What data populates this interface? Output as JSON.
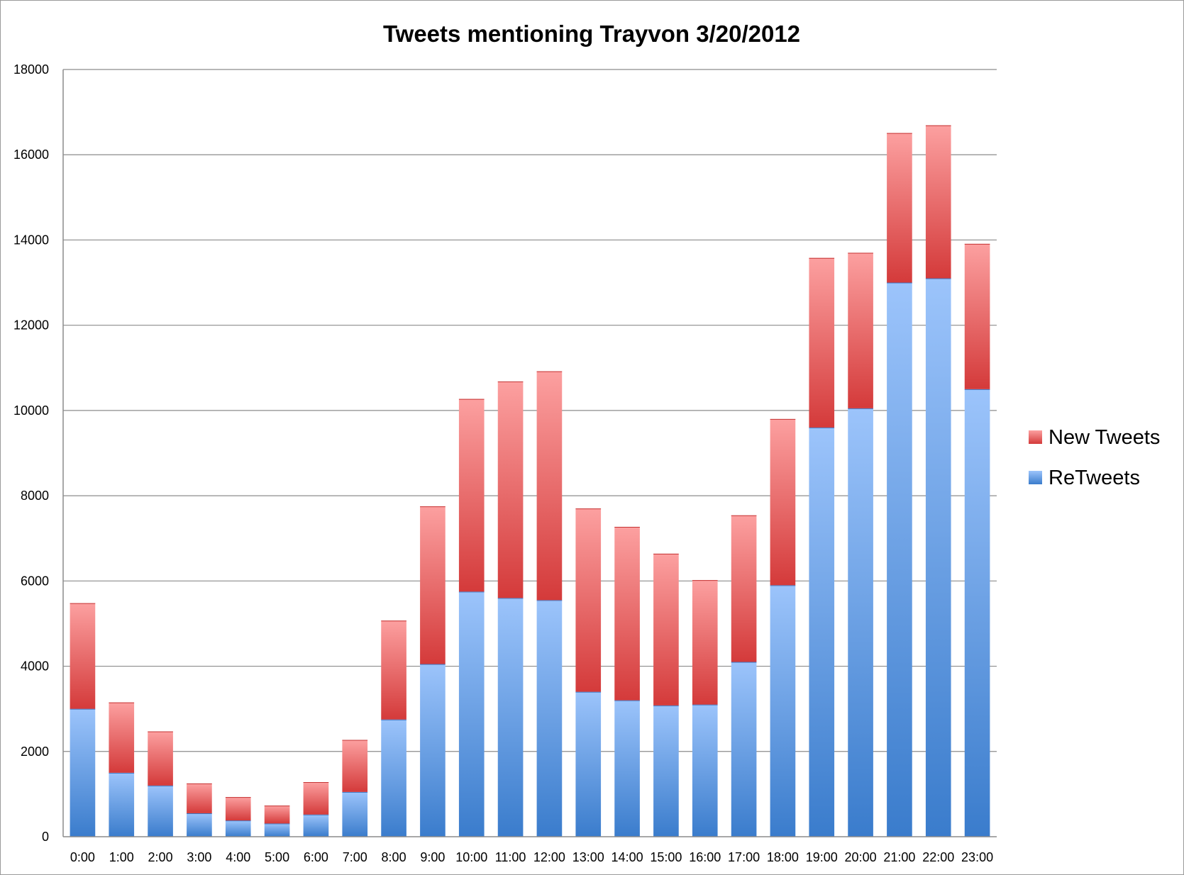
{
  "chart_data": {
    "type": "bar",
    "stacked": true,
    "title": "Tweets mentioning Trayvon 3/20/2012",
    "xlabel": "",
    "ylabel": "",
    "ylim": [
      0,
      18000
    ],
    "yticks": [
      0,
      2000,
      4000,
      6000,
      8000,
      10000,
      12000,
      14000,
      16000,
      18000
    ],
    "grid": true,
    "legend_position": "right",
    "categories": [
      "0:00",
      "1:00",
      "2:00",
      "3:00",
      "4:00",
      "5:00",
      "6:00",
      "7:00",
      "8:00",
      "9:00",
      "10:00",
      "11:00",
      "12:00",
      "13:00",
      "14:00",
      "15:00",
      "16:00",
      "17:00",
      "18:00",
      "19:00",
      "20:00",
      "21:00",
      "22:00",
      "23:00"
    ],
    "series": [
      {
        "name": "ReTweets",
        "color": "#4a8ad8",
        "values": [
          3000,
          1500,
          1200,
          550,
          380,
          310,
          520,
          1050,
          2750,
          4050,
          5750,
          5600,
          5550,
          3400,
          3200,
          3080,
          3100,
          4100,
          5900,
          9600,
          10050,
          13000,
          13100,
          10500
        ]
      },
      {
        "name": "New Tweets",
        "color": "#dc4a4a",
        "values": [
          2480,
          1650,
          1270,
          700,
          550,
          420,
          760,
          1220,
          2320,
          3700,
          4520,
          5080,
          5370,
          4300,
          4070,
          3560,
          2920,
          3440,
          3900,
          3980,
          3650,
          3510,
          3590,
          3410
        ]
      }
    ]
  }
}
